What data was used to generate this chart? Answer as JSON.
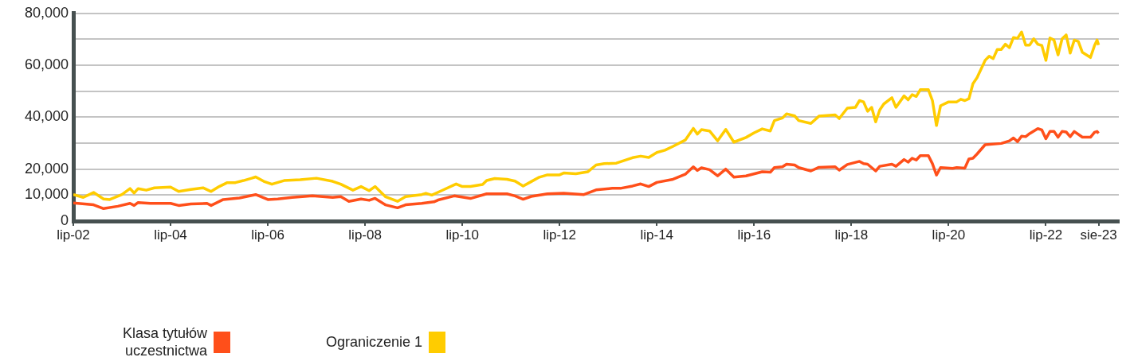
{
  "chart_data": {
    "type": "line",
    "xlim": [
      "2002-07",
      "2024-01"
    ],
    "xticks": [
      {
        "value": "2002-07",
        "label": "lip-02"
      },
      {
        "value": "2004-07",
        "label": "lip-04"
      },
      {
        "value": "2006-07",
        "label": "lip-06"
      },
      {
        "value": "2008-07",
        "label": "lip-08"
      },
      {
        "value": "2010-07",
        "label": "lip-10"
      },
      {
        "value": "2012-07",
        "label": "lip-12"
      },
      {
        "value": "2014-07",
        "label": "lip-14"
      },
      {
        "value": "2016-07",
        "label": "lip-16"
      },
      {
        "value": "2018-07",
        "label": "lip-18"
      },
      {
        "value": "2020-07",
        "label": "lip-20"
      },
      {
        "value": "2022-07",
        "label": "lip-22"
      },
      {
        "value": "2023-08",
        "label": "sie-23"
      }
    ],
    "ylim": [
      0,
      80000
    ],
    "yticks": [
      {
        "value": 0,
        "label": "0"
      },
      {
        "value": 10000,
        "label": "10,000"
      },
      {
        "value": 20000,
        "label": "20,000"
      },
      {
        "value": 30000,
        "label": null
      },
      {
        "value": 40000,
        "label": "40,000"
      },
      {
        "value": 50000,
        "label": null
      },
      {
        "value": 60000,
        "label": "60,000"
      },
      {
        "value": 70000,
        "label": null
      },
      {
        "value": 80000,
        "label": "80,000"
      }
    ],
    "grid": "y",
    "legend": "bottom",
    "marker": "none",
    "series": [
      {
        "name": "Klasa tytułów uczestnictwa",
        "color": "#ff4f1a",
        "x": [
          "2002-07",
          "2002-12",
          "2003-02-15",
          "2003-06",
          "2003-09",
          "2003-10",
          "2003-11",
          "2004-02",
          "2004-07",
          "2004-09",
          "2004-12",
          "2005-04",
          "2005-05",
          "2005-08",
          "2005-12",
          "2006-04",
          "2006-07",
          "2006-09-15",
          "2007-01",
          "2007-06",
          "2007-11",
          "2008-01",
          "2008-03",
          "2008-06",
          "2008-08",
          "2008-09-15",
          "2008-12",
          "2009-03",
          "2009-05",
          "2009-09",
          "2009-12",
          "2010-01",
          "2010-05",
          "2010-09",
          "2011-01",
          "2011-06",
          "2011-08",
          "2011-10",
          "2011-12",
          "2012-04",
          "2012-08",
          "2013-01",
          "2013-04",
          "2013-08",
          "2013-10",
          "2014-01",
          "2014-03",
          "2014-05",
          "2014-07",
          "2014-11",
          "2015-02",
          "2015-04",
          "2015-05",
          "2015-06",
          "2015-08",
          "2015-10",
          "2015-12",
          "2016-02",
          "2016-05",
          "2016-09",
          "2016-11",
          "2016-12",
          "2017-02",
          "2017-03",
          "2017-05",
          "2017-06",
          "2017-09",
          "2017-11",
          "2018-03",
          "2018-04",
          "2018-06",
          "2018-09",
          "2018-10",
          "2018-11",
          "2019-01",
          "2019-02",
          "2019-05",
          "2019-06",
          "2019-08",
          "2019-09",
          "2019-10",
          "2019-11",
          "2019-12",
          "2020-02",
          "2020-03",
          "2020-04",
          "2020-05",
          "2020-08",
          "2020-09",
          "2020-11",
          "2020-12",
          "2021-01",
          "2021-02",
          "2021-04",
          "2021-08",
          "2021-10",
          "2021-11",
          "2021-12",
          "2022-01",
          "2022-02",
          "2022-03",
          "2022-05",
          "2022-06",
          "2022-07",
          "2022-08",
          "2022-09",
          "2022-10",
          "2022-11",
          "2022-12",
          "2023-01",
          "2023-02",
          "2023-04",
          "2023-06",
          "2023-07",
          "2023-07-20",
          "2023-08"
        ],
        "values": [
          7000,
          6250,
          4800,
          5700,
          6800,
          6000,
          7150,
          6800,
          6800,
          6000,
          6600,
          6800,
          6000,
          8300,
          8900,
          10200,
          8300,
          8500,
          9100,
          9700,
          9100,
          9400,
          7600,
          8500,
          8000,
          8750,
          6250,
          5100,
          6250,
          6800,
          7400,
          8100,
          9700,
          8700,
          10500,
          10500,
          9700,
          8400,
          9500,
          10500,
          10700,
          10200,
          12000,
          12600,
          12600,
          13500,
          14300,
          13300,
          14900,
          16100,
          18000,
          20900,
          19500,
          20500,
          19800,
          17400,
          20000,
          16900,
          17400,
          19000,
          18800,
          20600,
          20900,
          21900,
          21600,
          20600,
          19300,
          20700,
          20900,
          19600,
          21800,
          23000,
          22100,
          21900,
          19300,
          21100,
          21900,
          21100,
          23700,
          22700,
          24200,
          23500,
          25200,
          25200,
          22100,
          17700,
          20600,
          20300,
          20600,
          20400,
          23900,
          24200,
          25800,
          29400,
          29900,
          30900,
          32000,
          30600,
          32700,
          32500,
          33700,
          35600,
          35100,
          31700,
          34500,
          34500,
          32300,
          34500,
          34300,
          32500,
          34500,
          32300,
          32300,
          34200,
          34500,
          33800
        ]
      },
      {
        "name": "Ograniczenie 1",
        "color": "#ffcc00",
        "x": [
          "2002-07",
          "2002-09-15",
          "2002-12",
          "2003-02-15",
          "2003-04",
          "2003-07",
          "2003-09",
          "2003-10",
          "2003-11",
          "2004-01",
          "2004-03",
          "2004-07",
          "2004-09",
          "2004-12",
          "2005-03",
          "2005-05",
          "2005-07",
          "2005-09",
          "2005-11",
          "2006-01",
          "2006-03",
          "2006-04",
          "2006-06",
          "2006-08",
          "2006-11",
          "2007-03",
          "2007-07",
          "2007-11",
          "2008-01",
          "2008-04",
          "2008-06",
          "2008-08",
          "2008-09-15",
          "2008-12",
          "2009-03",
          "2009-05",
          "2009-09",
          "2009-10",
          "2009-11-15",
          "2010-02",
          "2010-05-15",
          "2010-07",
          "2010-09",
          "2010-12",
          "2011-01",
          "2011-03",
          "2011-06",
          "2011-08",
          "2011-10",
          "2011-12",
          "2012-02",
          "2012-04",
          "2012-07",
          "2012-08",
          "2012-11",
          "2013-02",
          "2013-04",
          "2013-06",
          "2013-09",
          "2014-01",
          "2014-03",
          "2014-05",
          "2014-07",
          "2014-09",
          "2014-11",
          "2015-02",
          "2015-04",
          "2015-05",
          "2015-06",
          "2015-08",
          "2015-10",
          "2015-12",
          "2016-02",
          "2016-05",
          "2016-07",
          "2016-09",
          "2016-11",
          "2016-12",
          "2017-02",
          "2017-03",
          "2017-05",
          "2017-06",
          "2017-09",
          "2017-11",
          "2018-03",
          "2018-04",
          "2018-06",
          "2018-08",
          "2018-09",
          "2018-10",
          "2018-11",
          "2018-12",
          "2019-01",
          "2019-02",
          "2019-03",
          "2019-05",
          "2019-06",
          "2019-08",
          "2019-09",
          "2019-10",
          "2019-11",
          "2019-12",
          "2020-02",
          "2020-03",
          "2020-04",
          "2020-05",
          "2020-07",
          "2020-09",
          "2020-10",
          "2020-11",
          "2020-12",
          "2021-01",
          "2021-02",
          "2021-04",
          "2021-05",
          "2021-06",
          "2021-07",
          "2021-08",
          "2021-09",
          "2021-10",
          "2021-11",
          "2021-12",
          "2022-01",
          "2022-02",
          "2022-03",
          "2022-04",
          "2022-05",
          "2022-06",
          "2022-07",
          "2022-08",
          "2022-09",
          "2022-10",
          "2022-11",
          "2022-12",
          "2023-01",
          "2023-02",
          "2023-03",
          "2023-04",
          "2023-06",
          "2023-07",
          "2023-07-20",
          "2023-08"
        ],
        "values": [
          10200,
          9100,
          11000,
          8500,
          8300,
          10200,
          12500,
          10800,
          12500,
          11900,
          12800,
          13100,
          11400,
          12200,
          12800,
          11400,
          13300,
          14800,
          14800,
          15600,
          16500,
          17000,
          15300,
          14200,
          15600,
          15900,
          16500,
          15300,
          14200,
          11900,
          13300,
          11700,
          13300,
          9400,
          7600,
          9400,
          10200,
          10700,
          10000,
          11800,
          14300,
          13300,
          13300,
          14100,
          15600,
          16400,
          16100,
          15400,
          13500,
          15200,
          16900,
          17800,
          17800,
          18500,
          18200,
          19000,
          21600,
          22100,
          22300,
          24400,
          25000,
          24500,
          26400,
          27300,
          28800,
          31200,
          35700,
          33500,
          35200,
          34700,
          30900,
          35300,
          30400,
          32200,
          34000,
          35500,
          34700,
          38700,
          39700,
          41300,
          40500,
          38700,
          37600,
          40400,
          40900,
          39500,
          43500,
          43800,
          46400,
          45900,
          42300,
          43800,
          38200,
          42800,
          45100,
          47500,
          43800,
          48200,
          46700,
          48700,
          48000,
          50600,
          50600,
          46400,
          36800,
          44400,
          45900,
          45900,
          46900,
          46400,
          47100,
          52900,
          55200,
          61900,
          63500,
          62600,
          66100,
          66100,
          68100,
          66800,
          70700,
          70400,
          72800,
          67800,
          67800,
          70200,
          68100,
          67600,
          61900,
          70500,
          69700,
          64000,
          70200,
          71700,
          64700,
          69700,
          69200,
          65000,
          63000,
          67600,
          69700,
          67800
        ]
      }
    ]
  }
}
